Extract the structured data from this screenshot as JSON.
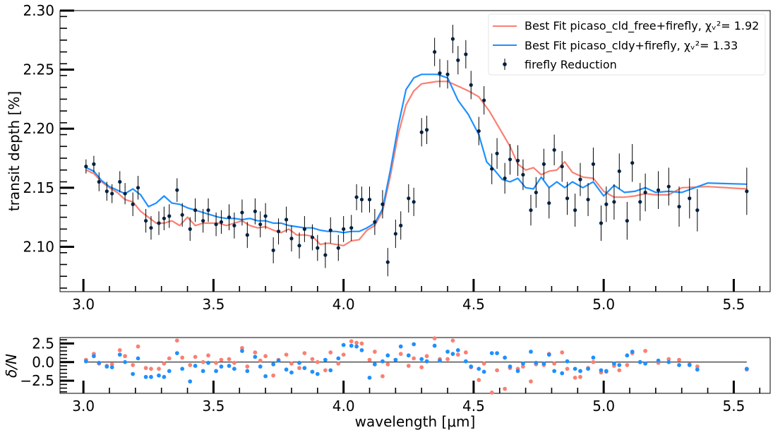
{
  "chart_data": [
    {
      "type": "line",
      "ylabel": "transit depth [%]",
      "xlim": [
        2.91,
        5.64
      ],
      "ylim": [
        2.062,
        2.3
      ],
      "xticks": [
        "3.0",
        "3.5",
        "4.0",
        "4.5",
        "5.0",
        "5.5"
      ],
      "yticks": [
        "2.10",
        "2.15",
        "2.20",
        "2.25",
        "2.30"
      ],
      "legend_position": "top-right",
      "legend": {
        "series_cld_free": "Best Fit picaso_cld_free+firefly, χᵥ²= 1.92",
        "series_cldy": "Best Fit picaso_cldy+firefly, χᵥ²= 1.33",
        "series_data": "firefly Reduction"
      },
      "colors": {
        "cld_free": "#fa8072",
        "cldy": "#1e90ff",
        "data": "#00203f"
      },
      "series": [
        {
          "name": "Best Fit picaso_cld_free+firefly, χᵥ²= 1.92",
          "x": [
            3.01,
            3.04,
            3.07,
            3.1,
            3.13,
            3.16,
            3.19,
            3.22,
            3.25,
            3.28,
            3.31,
            3.34,
            3.37,
            3.4,
            3.43,
            3.46,
            3.49,
            3.52,
            3.55,
            3.58,
            3.61,
            3.64,
            3.67,
            3.7,
            3.73,
            3.76,
            3.79,
            3.82,
            3.85,
            3.88,
            3.91,
            3.94,
            3.97,
            4.0,
            4.03,
            4.06,
            4.09,
            4.12,
            4.15,
            4.18,
            4.21,
            4.24,
            4.27,
            4.3,
            4.33,
            4.36,
            4.4,
            4.44,
            4.48,
            4.52,
            4.56,
            4.6,
            4.64,
            4.67,
            4.7,
            4.73,
            4.76,
            4.79,
            4.82,
            4.85,
            4.88,
            4.92,
            4.96,
            5.0,
            5.04,
            5.08,
            5.12,
            5.16,
            5.2,
            5.25,
            5.3,
            5.4,
            5.55
          ],
          "y": [
            2.165,
            2.162,
            2.155,
            2.15,
            2.146,
            2.14,
            2.138,
            2.13,
            2.125,
            2.12,
            2.12,
            2.122,
            2.118,
            2.125,
            2.118,
            2.12,
            2.12,
            2.12,
            2.118,
            2.12,
            2.122,
            2.118,
            2.116,
            2.117,
            2.114,
            2.112,
            2.115,
            2.11,
            2.11,
            2.109,
            2.102,
            2.103,
            2.102,
            2.101,
            2.105,
            2.106,
            2.114,
            2.118,
            2.13,
            2.16,
            2.195,
            2.22,
            2.232,
            2.238,
            2.239,
            2.24,
            2.24,
            2.236,
            2.232,
            2.227,
            2.215,
            2.2,
            2.185,
            2.17,
            2.165,
            2.167,
            2.161,
            2.164,
            2.165,
            2.172,
            2.163,
            2.159,
            2.158,
            2.147,
            2.142,
            2.142,
            2.143,
            2.145,
            2.144,
            2.144,
            2.15,
            2.151,
            2.149
          ]
        },
        {
          "name": "Best Fit picaso_cldy+firefly, χᵥ²= 1.33",
          "x": [
            3.01,
            3.04,
            3.07,
            3.1,
            3.13,
            3.16,
            3.19,
            3.22,
            3.25,
            3.28,
            3.31,
            3.34,
            3.37,
            3.4,
            3.43,
            3.46,
            3.49,
            3.52,
            3.55,
            3.58,
            3.61,
            3.64,
            3.67,
            3.7,
            3.73,
            3.76,
            3.79,
            3.82,
            3.85,
            3.88,
            3.91,
            3.94,
            3.97,
            4.0,
            4.03,
            4.06,
            4.09,
            4.12,
            4.15,
            4.18,
            4.21,
            4.24,
            4.27,
            4.3,
            4.33,
            4.36,
            4.4,
            4.44,
            4.48,
            4.52,
            4.55,
            4.58,
            4.61,
            4.64,
            4.67,
            4.7,
            4.73,
            4.76,
            4.79,
            4.82,
            4.85,
            4.88,
            4.92,
            4.96,
            5.0,
            5.04,
            5.08,
            5.12,
            5.16,
            5.2,
            5.25,
            5.3,
            5.4,
            5.55
          ],
          "y": [
            2.167,
            2.164,
            2.156,
            2.151,
            2.148,
            2.145,
            2.149,
            2.144,
            2.134,
            2.137,
            2.143,
            2.137,
            2.136,
            2.133,
            2.131,
            2.129,
            2.127,
            2.125,
            2.124,
            2.124,
            2.123,
            2.124,
            2.122,
            2.122,
            2.12,
            2.12,
            2.118,
            2.117,
            2.116,
            2.116,
            2.114,
            2.113,
            2.113,
            2.112,
            2.113,
            2.113,
            2.116,
            2.12,
            2.132,
            2.165,
            2.202,
            2.233,
            2.243,
            2.246,
            2.246,
            2.246,
            2.243,
            2.224,
            2.212,
            2.195,
            2.172,
            2.165,
            2.157,
            2.155,
            2.158,
            2.15,
            2.149,
            2.159,
            2.15,
            2.155,
            2.15,
            2.155,
            2.15,
            2.155,
            2.143,
            2.152,
            2.146,
            2.147,
            2.15,
            2.146,
            2.147,
            2.146,
            2.154,
            2.153
          ]
        },
        {
          "name": "firefly Reduction",
          "type": "errorbar",
          "x": [
            3.01,
            3.04,
            3.06,
            3.09,
            3.11,
            3.14,
            3.16,
            3.19,
            3.21,
            3.24,
            3.26,
            3.29,
            3.31,
            3.33,
            3.36,
            3.38,
            3.41,
            3.43,
            3.46,
            3.48,
            3.51,
            3.53,
            3.56,
            3.58,
            3.61,
            3.63,
            3.66,
            3.68,
            3.7,
            3.73,
            3.75,
            3.78,
            3.8,
            3.83,
            3.85,
            3.88,
            3.9,
            3.93,
            3.95,
            3.98,
            4.0,
            4.03,
            4.05,
            4.07,
            4.1,
            4.12,
            4.15,
            4.17,
            4.2,
            4.22,
            4.25,
            4.27,
            4.3,
            4.32,
            4.35,
            4.37,
            4.4,
            4.42,
            4.44,
            4.47,
            4.49,
            4.52,
            4.54,
            4.57,
            4.59,
            4.62,
            4.64,
            4.67,
            4.69,
            4.72,
            4.74,
            4.77,
            4.79,
            4.81,
            4.84,
            4.86,
            4.89,
            4.91,
            4.94,
            4.96,
            4.99,
            5.01,
            5.04,
            5.06,
            5.09,
            5.11,
            5.14,
            5.16,
            5.21,
            5.25,
            5.29,
            5.33,
            5.36,
            5.55
          ],
          "y": [
            2.168,
            2.17,
            2.155,
            2.147,
            2.145,
            2.155,
            2.145,
            2.136,
            2.15,
            2.122,
            2.116,
            2.12,
            2.124,
            2.126,
            2.148,
            2.127,
            2.115,
            2.131,
            2.122,
            2.131,
            2.119,
            2.121,
            2.125,
            2.118,
            2.129,
            2.11,
            2.13,
            2.119,
            2.126,
            2.097,
            2.113,
            2.123,
            2.107,
            2.101,
            2.115,
            2.108,
            2.099,
            2.093,
            2.114,
            2.099,
            2.115,
            2.116,
            2.142,
            2.14,
            2.14,
            2.121,
            2.136,
            2.087,
            2.111,
            2.118,
            2.141,
            2.138,
            2.197,
            2.199,
            2.265,
            2.247,
            2.246,
            2.276,
            2.258,
            2.263,
            2.237,
            2.198,
            2.224,
            2.166,
            2.179,
            2.158,
            2.174,
            2.173,
            2.161,
            2.131,
            2.146,
            2.17,
            2.137,
            2.182,
            2.168,
            2.141,
            2.131,
            2.157,
            2.14,
            2.17,
            2.12,
            2.136,
            2.138,
            2.164,
            2.122,
            2.171,
            2.138,
            2.146,
            2.148,
            2.151,
            2.134,
            2.141,
            2.131,
            2.147
          ],
          "yerr": [
            0.006,
            0.007,
            0.008,
            0.008,
            0.008,
            0.009,
            0.009,
            0.01,
            0.01,
            0.01,
            0.01,
            0.01,
            0.01,
            0.01,
            0.01,
            0.01,
            0.01,
            0.01,
            0.01,
            0.01,
            0.01,
            0.01,
            0.011,
            0.011,
            0.011,
            0.011,
            0.011,
            0.011,
            0.011,
            0.011,
            0.011,
            0.011,
            0.011,
            0.011,
            0.011,
            0.011,
            0.011,
            0.011,
            0.011,
            0.011,
            0.011,
            0.011,
            0.011,
            0.011,
            0.011,
            0.011,
            0.012,
            0.012,
            0.012,
            0.012,
            0.012,
            0.012,
            0.012,
            0.012,
            0.012,
            0.012,
            0.012,
            0.012,
            0.012,
            0.012,
            0.012,
            0.012,
            0.012,
            0.013,
            0.013,
            0.013,
            0.013,
            0.013,
            0.013,
            0.013,
            0.013,
            0.013,
            0.013,
            0.013,
            0.013,
            0.014,
            0.014,
            0.014,
            0.014,
            0.014,
            0.015,
            0.015,
            0.015,
            0.015,
            0.016,
            0.016,
            0.016,
            0.016,
            0.016,
            0.016,
            0.017,
            0.017,
            0.018,
            0.02
          ]
        }
      ]
    },
    {
      "type": "scatter",
      "xlabel": "wavelength [μm]",
      "ylabel": "δ/N",
      "xlim": [
        2.91,
        5.64
      ],
      "ylim": [
        -4.2,
        3.3
      ],
      "xticks": [
        "3.0",
        "3.5",
        "4.0",
        "4.5",
        "5.0",
        "5.5"
      ],
      "yticks": [
        "−2.5",
        "0.0",
        "2.5"
      ],
      "reference_line": 0,
      "series": [
        {
          "color": "#fa8072",
          "x": [
            3.01,
            3.04,
            3.06,
            3.09,
            3.11,
            3.14,
            3.16,
            3.19,
            3.21,
            3.24,
            3.26,
            3.29,
            3.31,
            3.33,
            3.36,
            3.38,
            3.41,
            3.43,
            3.46,
            3.48,
            3.51,
            3.53,
            3.56,
            3.58,
            3.61,
            3.63,
            3.66,
            3.68,
            3.7,
            3.73,
            3.75,
            3.78,
            3.8,
            3.83,
            3.85,
            3.88,
            3.9,
            3.93,
            3.95,
            3.98,
            4.0,
            4.03,
            4.05,
            4.07,
            4.1,
            4.12,
            4.15,
            4.17,
            4.2,
            4.22,
            4.25,
            4.27,
            4.3,
            4.32,
            4.35,
            4.37,
            4.4,
            4.42,
            4.44,
            4.47,
            4.49,
            4.52,
            4.54,
            4.57,
            4.59,
            4.62,
            4.64,
            4.67,
            4.69,
            4.72,
            4.74,
            4.77,
            4.79,
            4.81,
            4.84,
            4.86,
            4.89,
            4.91,
            4.94,
            4.96,
            4.99,
            5.01,
            5.04,
            5.06,
            5.09,
            5.11,
            5.14,
            5.16,
            5.21,
            5.25,
            5.29,
            5.33,
            5.36,
            5.55
          ],
          "values": [
            0.3,
            1.1,
            -0.2,
            -0.5,
            -0.3,
            1.6,
            0.8,
            -0.4,
            2.1,
            -0.8,
            -0.9,
            -0.9,
            -0.2,
            0.5,
            2.9,
            0.6,
            -0.4,
            0.7,
            0.0,
            0.9,
            -0.1,
            0.3,
            0.4,
            -0.1,
            1.9,
            -0.6,
            1.3,
            0.2,
            0.8,
            -1.8,
            0.3,
            1.0,
            -0.2,
            -0.8,
            1.2,
            0.4,
            0.0,
            -1.1,
            1.3,
            -0.2,
            1.0,
            2.8,
            2.6,
            2.5,
            0.3,
            1.4,
            -1.9,
            -0.3,
            0.3,
            1.1,
            -0.5,
            0.5,
            -0.7,
            0.8,
            3.2,
            0.4,
            0.4,
            2.9,
            1.0,
            1.3,
            -0.7,
            -2.4,
            -0.2,
            -4.1,
            -1.1,
            -3.6,
            -0.8,
            -0.9,
            -0.6,
            -2.6,
            -0.3,
            -0.4,
            1.1,
            -0.2,
            1.3,
            -0.9,
            -2.1,
            -2.0,
            -0.8,
            0.0,
            -1.4,
            -1.3,
            -0.5,
            -1.1,
            -0.4,
            1.2,
            0.0,
            1.5,
            -0.1,
            0.4,
            0.3,
            -0.3,
            -0.6,
            -1.0
          ]
        },
        {
          "color": "#1e90ff",
          "x": [
            3.01,
            3.04,
            3.06,
            3.09,
            3.11,
            3.14,
            3.16,
            3.19,
            3.21,
            3.24,
            3.26,
            3.29,
            3.31,
            3.33,
            3.36,
            3.38,
            3.41,
            3.43,
            3.46,
            3.48,
            3.51,
            3.53,
            3.56,
            3.58,
            3.61,
            3.63,
            3.66,
            3.68,
            3.7,
            3.73,
            3.75,
            3.78,
            3.8,
            3.83,
            3.85,
            3.88,
            3.9,
            3.93,
            3.95,
            3.98,
            4.0,
            4.03,
            4.05,
            4.07,
            4.1,
            4.12,
            4.15,
            4.17,
            4.2,
            4.22,
            4.25,
            4.27,
            4.3,
            4.32,
            4.35,
            4.37,
            4.4,
            4.42,
            4.44,
            4.47,
            4.49,
            4.52,
            4.54,
            4.57,
            4.59,
            4.62,
            4.64,
            4.67,
            4.69,
            4.72,
            4.74,
            4.77,
            4.79,
            4.81,
            4.84,
            4.86,
            4.89,
            4.91,
            4.94,
            4.96,
            4.99,
            5.01,
            5.04,
            5.06,
            5.09,
            5.11,
            5.14,
            5.16,
            5.21,
            5.25,
            5.29,
            5.33,
            5.36,
            5.55
          ],
          "values": [
            0.1,
            0.8,
            -0.1,
            -0.6,
            -0.7,
            1.0,
            0.0,
            -1.6,
            0.5,
            -2.0,
            -2.0,
            -1.8,
            -2.0,
            -1.2,
            1.2,
            -0.9,
            -2.6,
            -0.5,
            -1.2,
            -0.1,
            -1.2,
            -0.6,
            -0.5,
            -0.9,
            1.5,
            -1.2,
            0.7,
            -0.6,
            -1.9,
            -0.3,
            0.2,
            -1.0,
            -1.4,
            -0.1,
            -0.8,
            -1.3,
            -1.6,
            0.3,
            -1.1,
            0.5,
            2.3,
            2.2,
            2.1,
            1.6,
            -2.1,
            -0.3,
            0.1,
            0.9,
            0.3,
            2.1,
            0.9,
            2.4,
            0.4,
            0.1,
            2.2,
            0.2,
            1.4,
            1.1,
            1.6,
            0.1,
            -0.6,
            -0.9,
            -1.3,
            1.2,
            1.2,
            0.6,
            -0.6,
            -1.2,
            -0.2,
            1.4,
            -0.1,
            -0.2,
            1.0,
            -1.2,
            -1.5,
            0.1,
            -0.9,
            -1.2,
            -0.9,
            0.6,
            -1.1,
            -1.2,
            -0.2,
            -0.4,
            0.9,
            1.4,
            0.0,
            -0.2,
            0.2,
            0.0,
            -0.4,
            -0.4,
            -1.0,
            -0.9
          ]
        }
      ]
    }
  ]
}
